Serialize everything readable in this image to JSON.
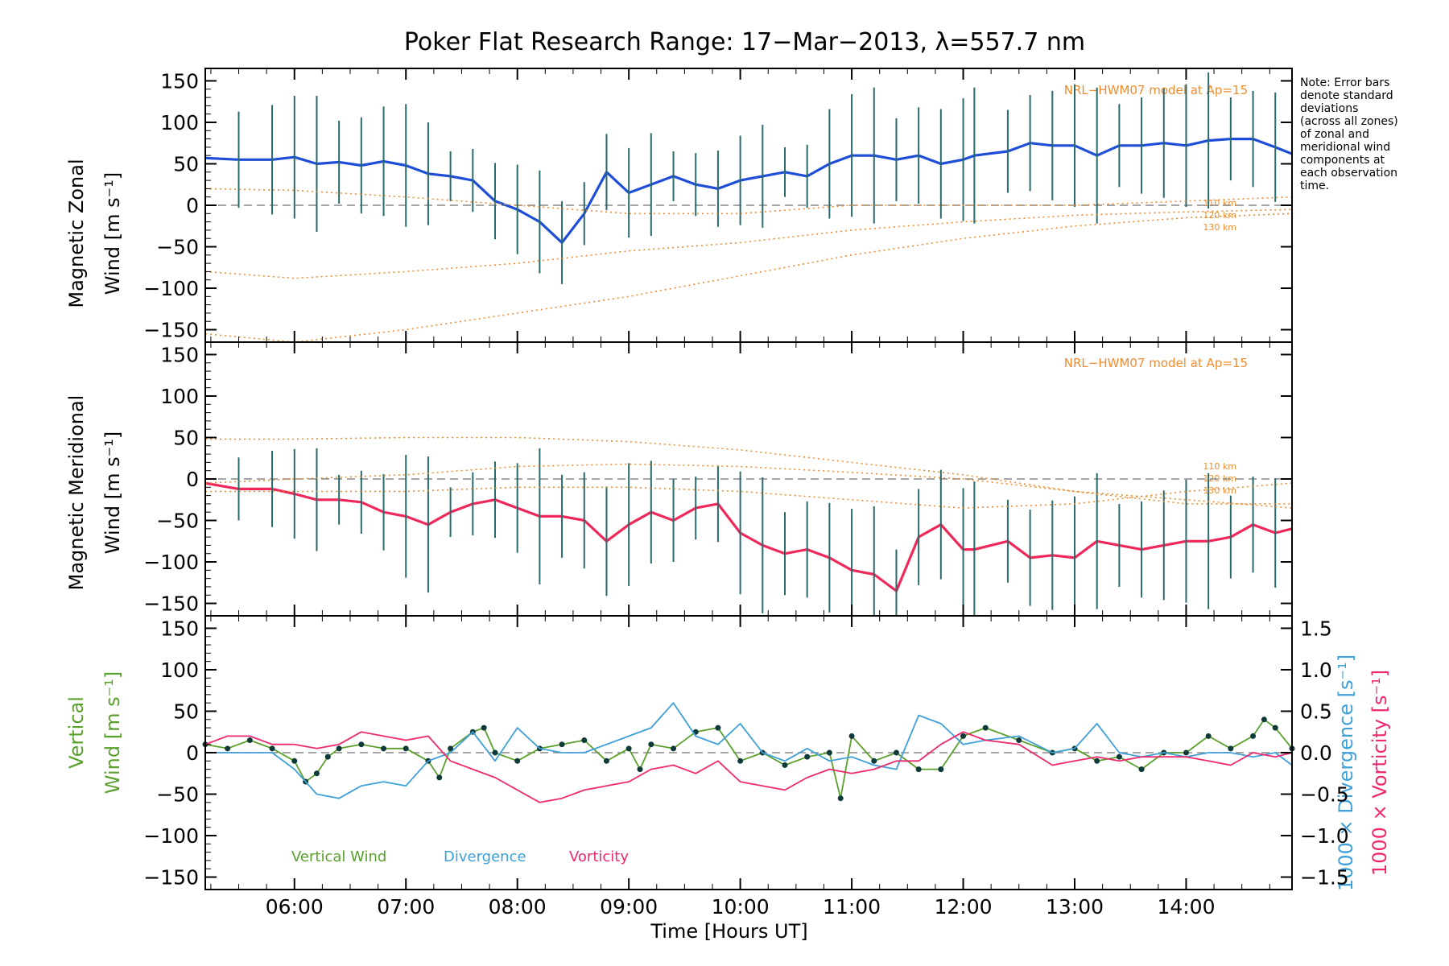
{
  "chart_data": [
    {
      "type": "line",
      "title": "Poker Flat Research Range: 17−Mar−2013, λ=557.7 nm",
      "panel": "zonal",
      "ylabel_top": "Magnetic Zonal",
      "ylabel_bottom": "Wind [m s⁻¹]",
      "ylim": [
        -165,
        165
      ],
      "yticks": [
        150,
        100,
        50,
        0,
        -50,
        -100,
        -150
      ],
      "ytick_labels": [
        "150",
        "100",
        "50",
        "0",
        "−50",
        "−100",
        "−150"
      ],
      "xlim_hours": [
        5.2,
        14.95
      ],
      "model_label": "NRL−HWM07 model at Ap=15",
      "model_altitude_labels": [
        "110 km",
        "120 km",
        "130 km"
      ],
      "series": [
        {
          "name": "Zonal wind (mean)",
          "color": "#1e4ed8",
          "x": [
            5.2,
            5.5,
            5.8,
            6.0,
            6.2,
            6.4,
            6.6,
            6.8,
            7.0,
            7.2,
            7.4,
            7.6,
            7.8,
            8.0,
            8.2,
            8.4,
            8.6,
            8.8,
            9.0,
            9.2,
            9.4,
            9.6,
            9.8,
            10.0,
            10.2,
            10.4,
            10.6,
            10.8,
            11.0,
            11.2,
            11.4,
            11.6,
            11.8,
            12.0,
            12.1,
            12.4,
            12.6,
            12.8,
            13.0,
            13.2,
            13.4,
            13.6,
            13.8,
            14.0,
            14.2,
            14.4,
            14.6,
            14.8,
            14.95
          ],
          "y": [
            57,
            55,
            55,
            58,
            50,
            52,
            48,
            53,
            48,
            38,
            35,
            30,
            5,
            -5,
            -20,
            -45,
            -10,
            40,
            15,
            25,
            35,
            25,
            20,
            30,
            35,
            40,
            35,
            50,
            60,
            60,
            55,
            60,
            50,
            55,
            60,
            65,
            75,
            72,
            72,
            60,
            72,
            72,
            75,
            72,
            78,
            80,
            80,
            70,
            62
          ]
        },
        {
          "name": "Model 110 km",
          "color": "#f08c2c",
          "x": [
            5.2,
            6.0,
            7.0,
            8.0,
            9.0,
            10.0,
            11.0,
            12.0,
            13.0,
            14.0,
            14.95
          ],
          "y": [
            20,
            18,
            10,
            0,
            -10,
            -10,
            0,
            0,
            0,
            5,
            10
          ]
        },
        {
          "name": "Model 120 km",
          "color": "#f08c2c",
          "x": [
            5.2,
            6.0,
            7.0,
            8.0,
            9.0,
            10.0,
            11.0,
            12.0,
            13.0,
            14.0,
            14.95
          ],
          "y": [
            -80,
            -88,
            -80,
            -70,
            -55,
            -45,
            -30,
            -20,
            -12,
            -8,
            -5
          ]
        },
        {
          "name": "Model 130 km",
          "color": "#f08c2c",
          "x": [
            5.2,
            6.0,
            7.0,
            8.0,
            9.0,
            10.0,
            11.0,
            12.0,
            13.0,
            14.0,
            14.95
          ],
          "y": [
            -155,
            -165,
            -150,
            -130,
            -110,
            -85,
            -60,
            -40,
            -25,
            -15,
            -10
          ]
        }
      ]
    },
    {
      "type": "line",
      "panel": "meridional",
      "ylabel_top": "Magnetic Meridional",
      "ylabel_bottom": "Wind [m s⁻¹]",
      "ylim": [
        -165,
        165
      ],
      "yticks": [
        150,
        100,
        50,
        0,
        -50,
        -100,
        -150
      ],
      "ytick_labels": [
        "150",
        "100",
        "50",
        "0",
        "−50",
        "−100",
        "−150"
      ],
      "xlim_hours": [
        5.2,
        14.95
      ],
      "model_label": "NRL−HWM07 model at Ap=15",
      "model_altitude_labels": [
        "110 km",
        "120 km",
        "130 km"
      ],
      "series": [
        {
          "name": "Meridional wind (mean)",
          "color": "#f0285a",
          "x": [
            5.2,
            5.5,
            5.8,
            6.0,
            6.2,
            6.4,
            6.6,
            6.8,
            7.0,
            7.2,
            7.4,
            7.6,
            7.8,
            8.0,
            8.2,
            8.4,
            8.6,
            8.8,
            9.0,
            9.2,
            9.4,
            9.6,
            9.8,
            10.0,
            10.2,
            10.4,
            10.6,
            10.8,
            11.0,
            11.2,
            11.4,
            11.6,
            11.8,
            12.0,
            12.1,
            12.4,
            12.6,
            12.8,
            13.0,
            13.2,
            13.4,
            13.6,
            13.8,
            14.0,
            14.2,
            14.4,
            14.6,
            14.8,
            14.95
          ],
          "y": [
            -5,
            -12,
            -12,
            -18,
            -25,
            -25,
            -28,
            -40,
            -45,
            -55,
            -40,
            -30,
            -25,
            -35,
            -45,
            -45,
            -50,
            -75,
            -55,
            -40,
            -50,
            -35,
            -30,
            -65,
            -80,
            -90,
            -85,
            -95,
            -110,
            -115,
            -135,
            -70,
            -55,
            -85,
            -85,
            -75,
            -95,
            -92,
            -95,
            -75,
            -80,
            -85,
            -80,
            -75,
            -75,
            -70,
            -55,
            -65,
            -60
          ]
        },
        {
          "name": "Model 110 km",
          "color": "#f08c2c",
          "x": [
            5.2,
            6.0,
            7.0,
            8.0,
            9.0,
            10.0,
            11.0,
            12.0,
            13.0,
            14.0,
            14.95
          ],
          "y": [
            48,
            48,
            50,
            50,
            45,
            35,
            20,
            5,
            -15,
            -30,
            -30
          ]
        },
        {
          "name": "Model 120 km",
          "color": "#f08c2c",
          "x": [
            5.2,
            6.0,
            7.0,
            8.0,
            9.0,
            10.0,
            11.0,
            12.0,
            13.0,
            14.0,
            14.95
          ],
          "y": [
            -5,
            0,
            5,
            15,
            18,
            15,
            8,
            0,
            -15,
            -25,
            -35
          ]
        },
        {
          "name": "Model 130 km",
          "color": "#f08c2c",
          "x": [
            5.2,
            6.0,
            7.0,
            8.0,
            9.0,
            10.0,
            11.0,
            12.0,
            13.0,
            14.0,
            14.95
          ],
          "y": [
            -15,
            -15,
            -15,
            -10,
            -10,
            -15,
            -25,
            -35,
            -30,
            -15,
            -5
          ]
        }
      ]
    },
    {
      "type": "line",
      "panel": "vertical",
      "ylabel_top": "Vertical",
      "ylabel_bottom": "Wind [m s⁻¹]",
      "ylim": [
        -165,
        165
      ],
      "yticks": [
        150,
        100,
        50,
        0,
        -50,
        -100,
        -150
      ],
      "ytick_labels": [
        "150",
        "100",
        "50",
        "0",
        "−50",
        "−100",
        "−150"
      ],
      "y2lim": [
        -1.65,
        1.65
      ],
      "y2ticks": [
        1.5,
        1.0,
        0.5,
        0.0,
        -0.5,
        -1.0,
        -1.5
      ],
      "y2tick_labels": [
        "1.5",
        "1.0",
        "0.5",
        "0.0",
        "−0.5",
        "−1.0",
        "−1.5"
      ],
      "y2label_divergence": "1000 × Divergence [s⁻¹]",
      "y2label_vorticity": "1000 × Vorticity [s⁻¹]",
      "xlim_hours": [
        5.2,
        14.95
      ],
      "xticks_hours": [
        6,
        7,
        8,
        9,
        10,
        11,
        12,
        13,
        14
      ],
      "xtick_labels": [
        "06:00",
        "07:00",
        "08:00",
        "09:00",
        "10:00",
        "11:00",
        "12:00",
        "13:00",
        "14:00"
      ],
      "xlabel": "Time [Hours UT]",
      "legend": [
        "Vertical Wind",
        "Divergence",
        "Vorticity"
      ],
      "series": [
        {
          "name": "Vertical Wind",
          "axis": "left",
          "color": "#5aa02c",
          "x": [
            5.2,
            5.4,
            5.6,
            5.8,
            6.0,
            6.1,
            6.2,
            6.3,
            6.4,
            6.6,
            6.8,
            7.0,
            7.2,
            7.3,
            7.4,
            7.6,
            7.7,
            7.8,
            8.0,
            8.2,
            8.4,
            8.6,
            8.8,
            9.0,
            9.1,
            9.2,
            9.4,
            9.6,
            9.8,
            10.0,
            10.2,
            10.4,
            10.6,
            10.8,
            10.9,
            11.0,
            11.2,
            11.4,
            11.6,
            11.8,
            12.0,
            12.2,
            12.5,
            12.8,
            13.0,
            13.2,
            13.4,
            13.6,
            13.8,
            14.0,
            14.2,
            14.4,
            14.6,
            14.7,
            14.8,
            14.95
          ],
          "y": [
            10,
            5,
            15,
            5,
            -10,
            -35,
            -25,
            -5,
            5,
            10,
            5,
            5,
            -10,
            -30,
            5,
            25,
            30,
            0,
            -10,
            5,
            10,
            15,
            -10,
            5,
            -20,
            10,
            5,
            25,
            30,
            -10,
            0,
            -15,
            -5,
            0,
            -55,
            20,
            -10,
            0,
            -20,
            -20,
            20,
            30,
            15,
            0,
            5,
            -10,
            -5,
            -20,
            0,
            0,
            20,
            5,
            20,
            40,
            30,
            5
          ]
        },
        {
          "name": "Divergence",
          "axis": "right",
          "color": "#3ea0d8",
          "x": [
            5.2,
            5.5,
            5.8,
            6.0,
            6.2,
            6.4,
            6.6,
            6.8,
            7.0,
            7.2,
            7.4,
            7.6,
            7.8,
            8.0,
            8.2,
            8.4,
            8.6,
            8.8,
            9.0,
            9.2,
            9.4,
            9.6,
            9.8,
            10.0,
            10.2,
            10.4,
            10.6,
            10.8,
            11.0,
            11.2,
            11.4,
            11.6,
            11.8,
            12.0,
            12.2,
            12.5,
            12.8,
            13.0,
            13.2,
            13.4,
            13.6,
            13.8,
            14.0,
            14.2,
            14.4,
            14.6,
            14.8,
            14.95
          ],
          "y": [
            0.0,
            0.0,
            0.0,
            -0.2,
            -0.5,
            -0.55,
            -0.4,
            -0.35,
            -0.4,
            -0.1,
            0.0,
            0.25,
            -0.1,
            0.3,
            0.05,
            0.0,
            0.0,
            0.1,
            0.2,
            0.3,
            0.6,
            0.2,
            0.1,
            0.35,
            0.0,
            -0.1,
            0.05,
            -0.1,
            -0.05,
            -0.15,
            -0.2,
            0.45,
            0.35,
            0.1,
            0.15,
            0.2,
            0.0,
            0.05,
            0.35,
            0.0,
            -0.05,
            0.0,
            -0.05,
            0.0,
            0.0,
            -0.05,
            0.0,
            -0.15
          ]
        },
        {
          "name": "Vorticity",
          "axis": "right",
          "color": "#f0286e",
          "x": [
            5.2,
            5.4,
            5.6,
            5.8,
            6.0,
            6.2,
            6.4,
            6.6,
            6.8,
            7.0,
            7.2,
            7.4,
            7.6,
            7.8,
            8.0,
            8.2,
            8.4,
            8.6,
            8.8,
            9.0,
            9.2,
            9.4,
            9.6,
            9.8,
            10.0,
            10.2,
            10.4,
            10.6,
            10.8,
            11.0,
            11.2,
            11.4,
            11.6,
            11.8,
            12.0,
            12.2,
            12.5,
            12.8,
            13.0,
            13.2,
            13.4,
            13.6,
            13.8,
            14.0,
            14.2,
            14.4,
            14.6,
            14.8,
            14.95
          ],
          "y": [
            0.1,
            0.2,
            0.2,
            0.1,
            0.1,
            0.05,
            0.1,
            0.25,
            0.2,
            0.15,
            0.2,
            -0.1,
            -0.2,
            -0.3,
            -0.45,
            -0.6,
            -0.55,
            -0.45,
            -0.4,
            -0.35,
            -0.2,
            -0.15,
            -0.25,
            -0.1,
            -0.35,
            -0.4,
            -0.45,
            -0.3,
            -0.2,
            -0.25,
            -0.2,
            -0.1,
            -0.1,
            0.1,
            0.25,
            0.15,
            0.1,
            -0.15,
            -0.1,
            -0.05,
            -0.1,
            -0.05,
            -0.05,
            -0.05,
            -0.1,
            -0.15,
            0.0,
            -0.05,
            0.0
          ]
        }
      ]
    }
  ],
  "note_lines": [
    "Note: Error bars",
    "denote standard",
    "deviations",
    "(across all zones)",
    "of zonal and",
    "meridional wind",
    "components at",
    "each observation",
    "time."
  ]
}
